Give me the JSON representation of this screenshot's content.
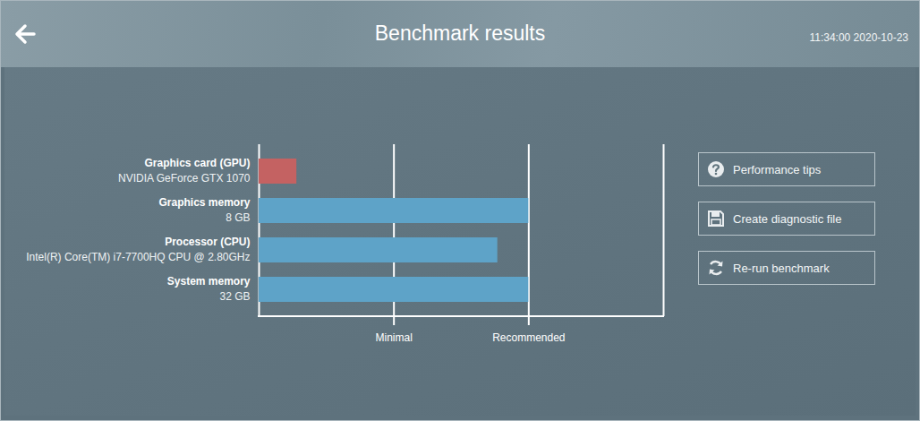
{
  "header": {
    "title": "Benchmark results",
    "timestamp": "11:34:00 2020-10-23"
  },
  "buttons": [
    "Performance tips",
    "Create diagnostic file",
    "Re-run benchmark"
  ],
  "chart_data": {
    "type": "bar",
    "orientation": "horizontal",
    "categories": [
      "Graphics card (GPU)",
      "Graphics memory",
      "Processor (CPU)",
      "System memory"
    ],
    "category_details": [
      "NVIDIA GeForce GTX 1070",
      "8 GB",
      "Intel(R) Core(TM) i7-7700HQ CPU @ 2.80GHz",
      "32 GB"
    ],
    "values": [
      0.28,
      2,
      1.77,
      2
    ],
    "colors": [
      "#c46262",
      "#5ea3c8",
      "#5ea3c8",
      "#5ea3c8"
    ],
    "xlim": [
      0,
      3
    ],
    "xticks": [
      {
        "value": 1,
        "label": "Minimal"
      },
      {
        "value": 2,
        "label": "Recommended"
      }
    ],
    "grid": true
  }
}
